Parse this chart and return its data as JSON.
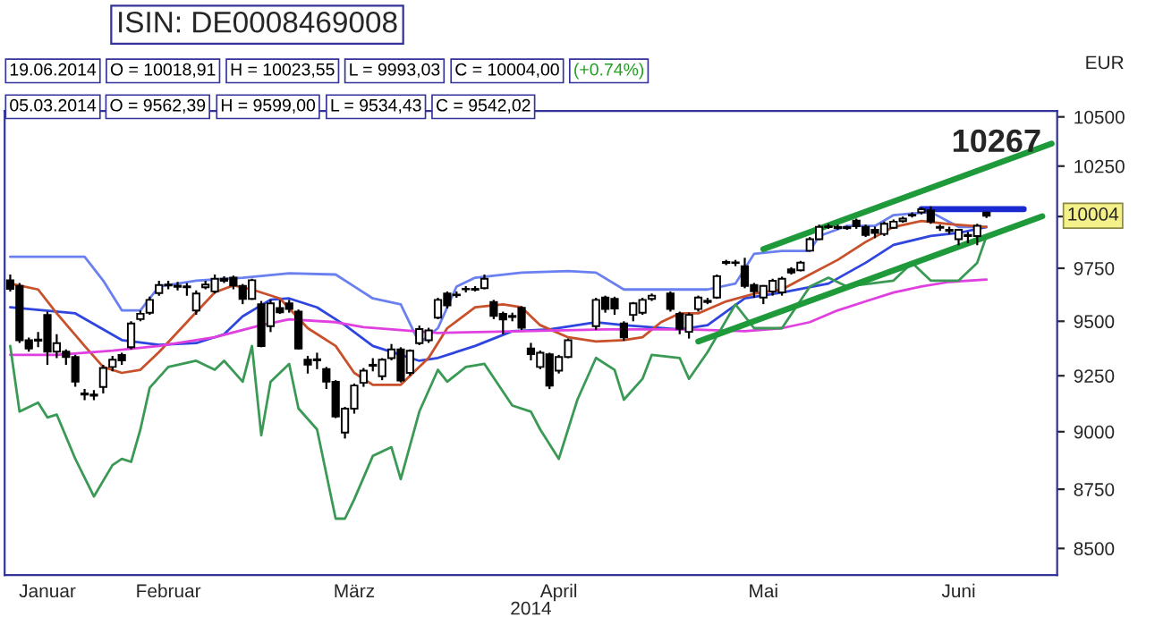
{
  "chart_data": {
    "type": "candlestick",
    "title": "ISIN: DE0008469008",
    "xlabel": "2014",
    "ylabel": "EUR",
    "log": true,
    "ylim": [
      8390,
      10530
    ],
    "yticks": [
      8500,
      8750,
      9000,
      9250,
      9500,
      9750,
      {
        "value": 10000,
        "label": null
      },
      10250,
      10500
    ],
    "grid": false,
    "legend": false,
    "categories": [
      null,
      null,
      null,
      null,
      "Januar",
      null,
      null,
      null,
      null,
      null,
      null,
      null,
      null,
      null,
      null,
      null,
      null,
      "Februar",
      null,
      null,
      null,
      null,
      null,
      null,
      null,
      null,
      null,
      null,
      null,
      null,
      null,
      null,
      null,
      null,
      null,
      null,
      null,
      "März",
      null,
      null,
      null,
      null,
      null,
      null,
      null,
      null,
      null,
      null,
      null,
      null,
      null,
      null,
      null,
      null,
      null,
      null,
      null,
      null,
      null,
      "April",
      null,
      null,
      null,
      null,
      null,
      null,
      null,
      null,
      null,
      null,
      null,
      null,
      null,
      null,
      null,
      null,
      null,
      null,
      null,
      null,
      null,
      "Mai",
      null,
      null,
      null,
      null,
      null,
      null,
      null,
      null,
      null,
      null,
      null,
      null,
      null,
      null,
      null,
      null,
      null,
      null,
      null,
      null,
      "Juni",
      null,
      null,
      null,
      null,
      null,
      null,
      null,
      null,
      null,
      null
    ],
    "ohlc": [
      [
        9693,
        9720,
        9640,
        9652
      ],
      [
        9666,
        9680,
        9400,
        9412
      ],
      [
        9412,
        9425,
        9360,
        9374
      ],
      [
        9410,
        9450,
        9380,
        9415
      ],
      [
        9530,
        9545,
        9300,
        9360
      ],
      [
        9360,
        9440,
        9330,
        9399
      ],
      [
        9360,
        9370,
        9300,
        9335
      ],
      [
        9335,
        9345,
        9200,
        9223
      ],
      [
        9165,
        9190,
        9140,
        9170
      ],
      [
        9160,
        9185,
        9140,
        9165
      ],
      [
        9199,
        9300,
        9170,
        9285
      ],
      [
        9290,
        9340,
        9270,
        9323
      ],
      [
        9345,
        9355,
        9300,
        9320
      ],
      [
        9380,
        9500,
        9370,
        9490
      ],
      [
        9510,
        9550,
        9500,
        9535
      ],
      [
        9540,
        9615,
        9530,
        9600
      ],
      [
        9632,
        9690,
        9620,
        9670
      ],
      [
        9668,
        9690,
        9650,
        9672
      ],
      [
        9662,
        9685,
        9645,
        9667
      ],
      [
        9660,
        9680,
        9620,
        9664
      ],
      [
        9550,
        9645,
        9530,
        9630
      ],
      [
        9660,
        9690,
        9650,
        9672
      ],
      [
        9640,
        9720,
        9630,
        9700
      ],
      [
        9700,
        9712,
        9680,
        9690
      ],
      [
        9705,
        9715,
        9650,
        9668
      ],
      [
        9666,
        9675,
        9580,
        9605
      ],
      [
        9605,
        9700,
        9600,
        9693
      ],
      [
        9580,
        9595,
        9380,
        9385
      ],
      [
        9477,
        9600,
        9450,
        9584
      ],
      [
        9562.39,
        9599,
        9534.43,
        9542.02
      ],
      [
        9584,
        9600,
        9540,
        9557
      ],
      [
        9545,
        9555,
        9370,
        9374
      ],
      [
        9323,
        9340,
        9260,
        9300
      ],
      [
        9320,
        9355,
        9280,
        9325
      ],
      [
        9280,
        9290,
        9190,
        9223
      ],
      [
        9223,
        9230,
        9060,
        9067
      ],
      [
        8996,
        9110,
        8970,
        9102
      ],
      [
        9102,
        9215,
        9080,
        9206
      ],
      [
        9218,
        9285,
        9200,
        9273
      ],
      [
        9295,
        9330,
        9270,
        9300
      ],
      [
        9248,
        9330,
        9230,
        9323
      ],
      [
        9330,
        9395,
        9320,
        9370
      ],
      [
        9370,
        9380,
        9220,
        9228
      ],
      [
        9263,
        9370,
        9250,
        9364
      ],
      [
        9399,
        9480,
        9390,
        9464
      ],
      [
        9412,
        9470,
        9400,
        9458
      ],
      [
        9517,
        9610,
        9510,
        9600
      ],
      [
        9630,
        9640,
        9560,
        9574
      ],
      [
        9622,
        9640,
        9610,
        9625
      ],
      [
        9650,
        9665,
        9635,
        9652
      ],
      [
        9648,
        9665,
        9640,
        9652
      ],
      [
        9655,
        9720,
        9650,
        9700
      ],
      [
        9590,
        9600,
        9510,
        9525
      ],
      [
        9535,
        9545,
        9440,
        9508
      ],
      [
        9520,
        9540,
        9500,
        9525
      ],
      [
        9563,
        9570,
        9460,
        9470
      ],
      [
        9374,
        9400,
        9320,
        9348
      ],
      [
        9290,
        9365,
        9280,
        9355
      ],
      [
        9348,
        9355,
        9190,
        9205
      ],
      [
        9273,
        9345,
        9260,
        9335
      ],
      [
        9335,
        9420,
        9330,
        9412
      ],
      null,
      null,
      [
        9477,
        9610,
        9460,
        9600
      ],
      [
        9611,
        9620,
        9540,
        9557
      ],
      [
        9605,
        9615,
        9530,
        9560
      ],
      [
        9490,
        9500,
        9410,
        9425
      ],
      [
        9530,
        9590,
        9500,
        9584
      ],
      [
        9540,
        9610,
        9530,
        9600
      ],
      [
        9605,
        9630,
        9595,
        9620
      ],
      null,
      [
        9630,
        9640,
        9545,
        9557
      ],
      [
        9535,
        9545,
        9440,
        9465
      ],
      [
        9451,
        9540,
        9420,
        9530
      ],
      [
        9557,
        9620,
        9545,
        9611
      ],
      [
        9590,
        9610,
        9580,
        9596
      ],
      [
        9611,
        9720,
        9605,
        9712
      ],
      [
        9775,
        9790,
        9765,
        9780
      ],
      [
        9775,
        9790,
        9760,
        9778
      ],
      [
        9760,
        9800,
        9655,
        9666
      ],
      [
        9670,
        9680,
        9610,
        9640
      ],
      [
        9611,
        9670,
        9580,
        9666
      ],
      [
        9640,
        9700,
        9620,
        9690
      ],
      [
        9635,
        9710,
        9620,
        9700
      ],
      [
        9745,
        9755,
        9720,
        9730
      ],
      [
        9740,
        9785,
        9735,
        9777
      ],
      [
        9834,
        9900,
        9830,
        9890
      ],
      [
        9890,
        9960,
        9885,
        9949
      ],
      [
        9948,
        9965,
        9940,
        9952
      ],
      [
        9944,
        9960,
        9935,
        9949
      ],
      [
        9943,
        9955,
        9935,
        9948
      ],
      [
        9980,
        9990,
        9940,
        9952
      ],
      [
        9950,
        9960,
        9900,
        9910
      ],
      [
        9935,
        9950,
        9895,
        9920
      ],
      [
        9915,
        9975,
        9905,
        9965
      ],
      [
        9945,
        9985,
        9940,
        9975
      ],
      [
        9978,
        10000,
        9970,
        9990
      ],
      [
        10005,
        10020,
        9995,
        10008
      ],
      [
        10020,
        10045,
        10010,
        10036
      ],
      [
        10030,
        10050,
        9965,
        9975
      ],
      [
        9950,
        9960,
        9930,
        9945
      ],
      [
        9935,
        9950,
        9915,
        9930
      ],
      [
        9890,
        9940,
        9860,
        9935
      ],
      [
        9905,
        9925,
        9870,
        9910
      ],
      [
        9905,
        9965,
        9860,
        9955
      ],
      [
        10018.91,
        10023.55,
        9993.03,
        10004
      ],
      null,
      null,
      null,
      null,
      null,
      null,
      null
    ],
    "series": [
      {
        "type": "line",
        "color": "#6a80f0",
        "values": [
          9805,
          null,
          null,
          null,
          null,
          9805,
          null,
          null,
          9805,
          null,
          9691,
          null,
          9551,
          null,
          9551,
          null,
          9663,
          null,
          null,
          null,
          9691,
          null,
          null,
          null,
          null,
          9705,
          null,
          null,
          null,
          null,
          9726,
          null,
          null,
          null,
          null,
          9720,
          null,
          9663,
          null,
          9607,
          null,
          null,
          9579,
          null,
          9399,
          null,
          9468,
          null,
          9663,
          null,
          9705,
          null,
          null,
          null,
          null,
          9729,
          null,
          null,
          null,
          null,
          9737,
          null,
          null,
          9729,
          null,
          null,
          9649,
          null,
          null,
          null,
          9649,
          null,
          null,
          null,
          null,
          9649,
          null,
          null,
          9677,
          null,
          9819,
          null,
          null,
          9833,
          null,
          null,
          9833,
          9905,
          null,
          null,
          9954,
          null,
          null,
          9954,
          null,
          10007,
          null,
          null,
          null,
          10022,
          null,
          null,
          9949,
          null,
          null,
          9949,
          null,
          null,
          null,
          null,
          null,
          null,
          null
        ]
      },
      {
        "type": "line",
        "color": "#2f45e0",
        "values": [
          9565,
          null,
          null,
          null,
          null,
          null,
          null,
          9537,
          null,
          null,
          null,
          null,
          9413,
          null,
          null,
          null,
          9391,
          null,
          null,
          null,
          9399,
          null,
          null,
          9440,
          null,
          9523,
          null,
          null,
          9601,
          null,
          9607,
          null,
          null,
          9565,
          null,
          null,
          9482,
          null,
          null,
          9386,
          null,
          null,
          null,
          null,
          9318,
          null,
          9331,
          null,
          null,
          null,
          9386,
          null,
          null,
          null,
          9454,
          null,
          null,
          null,
          9462,
          null,
          null,
          null,
          null,
          9496,
          null,
          null,
          9482,
          null,
          null,
          null,
          null,
          null,
          9462,
          null,
          null,
          9482,
          null,
          null,
          null,
          9607,
          null,
          null,
          null,
          9635,
          null,
          null,
          null,
          null,
          9677,
          null,
          null,
          null,
          9776,
          null,
          null,
          9862,
          null,
          null,
          null,
          9905,
          null,
          null,
          9920,
          null,
          null,
          9949,
          null,
          null,
          null,
          null,
          null,
          null,
          null
        ]
      },
      {
        "type": "line",
        "color": "#c8502a",
        "values": [
          9677,
          null,
          null,
          9649,
          null,
          9537,
          null,
          null,
          9386,
          null,
          9290,
          null,
          9263,
          null,
          9277,
          null,
          9358,
          null,
          null,
          9496,
          null,
          null,
          9635,
          null,
          9668,
          null,
          9649,
          null,
          null,
          9607,
          null,
          null,
          9468,
          null,
          null,
          9386,
          null,
          9263,
          null,
          9209,
          null,
          null,
          9209,
          null,
          null,
          9331,
          null,
          9468,
          null,
          null,
          9565,
          null,
          null,
          9579,
          null,
          9565,
          null,
          9482,
          null,
          null,
          9426,
          null,
          null,
          9407,
          null,
          null,
          9413,
          null,
          9426,
          null,
          9496,
          null,
          9537,
          null,
          9537,
          null,
          null,
          9593,
          null,
          null,
          9629,
          null,
          null,
          9649,
          null,
          null,
          9720,
          null,
          null,
          9790,
          null,
          null,
          9876,
          null,
          null,
          9949,
          null,
          null,
          9978,
          null,
          null,
          9963,
          null,
          null,
          null,
          9949,
          null,
          null,
          null,
          null,
          null,
          null,
          null
        ]
      },
      {
        "type": "line",
        "color": "#e040e0",
        "values": [
          9345,
          null,
          null,
          null,
          null,
          9345,
          null,
          null,
          null,
          null,
          null,
          9364,
          null,
          null,
          null,
          null,
          9386,
          null,
          null,
          null,
          null,
          null,
          9426,
          null,
          null,
          null,
          null,
          9482,
          null,
          null,
          9509,
          null,
          null,
          null,
          null,
          9496,
          null,
          null,
          9473,
          null,
          null,
          null,
          null,
          null,
          null,
          null,
          9446,
          null,
          null,
          null,
          null,
          null,
          null,
          null,
          null,
          9454,
          null,
          null,
          null,
          null,
          null,
          null,
          null,
          null,
          9462,
          null,
          null,
          null,
          null,
          null,
          null,
          null,
          null,
          9462,
          null,
          null,
          null,
          null,
          null,
          9454,
          null,
          null,
          null,
          9468,
          null,
          null,
          9496,
          null,
          null,
          9551,
          null,
          null,
          9593,
          null,
          null,
          9635,
          null,
          null,
          9663,
          null,
          null,
          9685,
          null,
          null,
          null,
          9696,
          null,
          null,
          null,
          null,
          null,
          null,
          null
        ]
      },
      {
        "type": "line",
        "color": "#3a9a55",
        "values": [
          9386,
          9089,
          null,
          9129,
          9063,
          9076,
          null,
          8881,
          null,
          8719,
          null,
          8854,
          8881,
          8868,
          9010,
          9196,
          null,
          9290,
          null,
          null,
          9318,
          null,
          9277,
          9318,
          null,
          9223,
          9386,
          8984,
          9223,
          null,
          9304,
          9103,
          null,
          9010,
          null,
          8625,
          8625,
          8707,
          null,
          8894,
          null,
          8932,
          8793,
          null,
          9089,
          null,
          9277,
          9223,
          null,
          9290,
          null,
          9304,
          null,
          null,
          9116,
          null,
          9089,
          9010,
          null,
          8881,
          null,
          9142,
          null,
          9331,
          null,
          9277,
          9142,
          null,
          9236,
          9345,
          null,
          null,
          9331,
          9236,
          null,
          9358,
          null,
          null,
          9579,
          null,
          9468,
          null,
          null,
          9468,
          null,
          null,
          9663,
          null,
          9705,
          null,
          9663,
          null,
          null,
          null,
          null,
          9691,
          null,
          9776,
          null,
          9691,
          null,
          null,
          9691,
          null,
          9776,
          9905,
          null,
          null,
          null,
          null,
          null,
          null,
          null
        ]
      },
      {
        "type": "line",
        "color": "#1f9a3a",
        "values": [
          null,
          null,
          null,
          null,
          null,
          null,
          null,
          null,
          null,
          null,
          null,
          null,
          null,
          null,
          null,
          null,
          null,
          null,
          null,
          null,
          null,
          null,
          null,
          null,
          null,
          null,
          null,
          null,
          null,
          null,
          null,
          null,
          null,
          null,
          null,
          null,
          null,
          null,
          null,
          null,
          null,
          null,
          null,
          null,
          null,
          null,
          null,
          null,
          null,
          null,
          null,
          null,
          null,
          null,
          null,
          null,
          null,
          null,
          null,
          null,
          null,
          null,
          null,
          null,
          null,
          null,
          null,
          null,
          null,
          null,
          null,
          null,
          null,
          null,
          null,
          null,
          null,
          null,
          null,
          null,
          null,
          9842,
          null,
          null,
          null,
          null,
          null,
          null,
          null,
          null,
          null,
          null,
          null,
          null,
          null,
          null,
          null,
          null,
          null,
          null,
          null,
          null,
          null,
          null,
          null,
          null,
          null,
          null,
          null,
          null,
          null,
          null,
          10363
        ]
      },
      {
        "type": "line",
        "color": "#1f9a3a",
        "values": [
          null,
          null,
          null,
          null,
          null,
          null,
          null,
          null,
          null,
          null,
          null,
          null,
          null,
          null,
          null,
          null,
          null,
          null,
          null,
          null,
          null,
          null,
          null,
          null,
          null,
          null,
          null,
          null,
          null,
          null,
          null,
          null,
          null,
          null,
          null,
          null,
          null,
          null,
          null,
          null,
          null,
          null,
          null,
          null,
          null,
          null,
          null,
          null,
          null,
          null,
          null,
          null,
          null,
          null,
          null,
          null,
          null,
          null,
          null,
          null,
          null,
          null,
          null,
          null,
          null,
          null,
          null,
          null,
          null,
          null,
          null,
          null,
          null,
          null,
          9407,
          null,
          null,
          null,
          null,
          null,
          null,
          null,
          null,
          null,
          null,
          null,
          null,
          null,
          null,
          null,
          null,
          null,
          null,
          null,
          null,
          null,
          null,
          null,
          null,
          null,
          null,
          null,
          null,
          null,
          null,
          null,
          null,
          null,
          null,
          null,
          null,
          10001,
          null
        ]
      },
      {
        "type": "line",
        "color": "#1a2ad0",
        "values": [
          null,
          null,
          null,
          null,
          null,
          null,
          null,
          null,
          null,
          null,
          null,
          null,
          null,
          null,
          null,
          null,
          null,
          null,
          null,
          null,
          null,
          null,
          null,
          null,
          null,
          null,
          null,
          null,
          null,
          null,
          null,
          null,
          null,
          null,
          null,
          null,
          null,
          null,
          null,
          null,
          null,
          null,
          null,
          null,
          null,
          null,
          null,
          null,
          null,
          null,
          null,
          null,
          null,
          null,
          null,
          null,
          null,
          null,
          null,
          null,
          null,
          null,
          null,
          null,
          null,
          null,
          null,
          null,
          null,
          null,
          null,
          null,
          null,
          null,
          null,
          null,
          null,
          null,
          null,
          null,
          null,
          null,
          null,
          null,
          null,
          null,
          null,
          null,
          null,
          null,
          null,
          null,
          null,
          null,
          null,
          null,
          null,
          null,
          10036,
          null,
          null,
          null,
          null,
          null,
          null,
          null,
          null,
          null,
          null,
          10036,
          null,
          null,
          null
        ]
      }
    ],
    "annotations": [
      "19.06.2014",
      "O = 10018,91",
      "H = 10023,55",
      "L = 9993,03",
      "C = 10004,00",
      "(+0.74%)",
      "05.03.2014",
      "O = 9562,39",
      "H = 9599,00",
      "L = 9534,43",
      "C = 9542,02",
      "10267",
      "10004"
    ]
  }
}
